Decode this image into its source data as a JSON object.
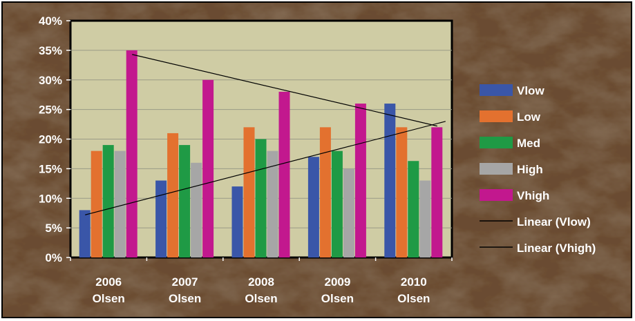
{
  "chart_data": {
    "type": "bar",
    "title": "",
    "xlabel": "",
    "ylabel": "",
    "categories": [
      [
        "2006",
        "Olsen"
      ],
      [
        "2007",
        "Olsen"
      ],
      [
        "2008",
        "Olsen"
      ],
      [
        "2009",
        "Olsen"
      ],
      [
        "2010",
        "Olsen"
      ]
    ],
    "ylim": [
      0,
      0.4
    ],
    "yticks": [
      "0%",
      "5%",
      "10%",
      "15%",
      "20%",
      "25%",
      "30%",
      "35%",
      "40%"
    ],
    "grid": true,
    "legend_position": "right",
    "plot_background": "#CFCCA4",
    "series": [
      {
        "name": "Vlow",
        "color": "#3A56A8",
        "values": [
          0.08,
          0.13,
          0.12,
          0.17,
          0.26
        ]
      },
      {
        "name": "Low",
        "color": "#E3712F",
        "values": [
          0.18,
          0.21,
          0.22,
          0.22,
          0.22
        ]
      },
      {
        "name": "Med",
        "color": "#1F9A45",
        "values": [
          0.19,
          0.19,
          0.2,
          0.18,
          0.163
        ]
      },
      {
        "name": "High",
        "color": "#A6A6A6",
        "values": [
          0.18,
          0.16,
          0.18,
          0.15,
          0.13
        ]
      },
      {
        "name": "Vhigh",
        "color": "#C2188E",
        "values": [
          0.35,
          0.3,
          0.28,
          0.26,
          0.22
        ]
      }
    ],
    "trendlines": [
      {
        "name": "Linear (Vlow)",
        "series": "Vlow",
        "color": "#000000",
        "start": 0.072,
        "end": 0.23
      },
      {
        "name": "Linear (Vhigh)",
        "series": "Vhigh",
        "color": "#000000",
        "start": 0.343,
        "end": 0.222
      }
    ]
  }
}
